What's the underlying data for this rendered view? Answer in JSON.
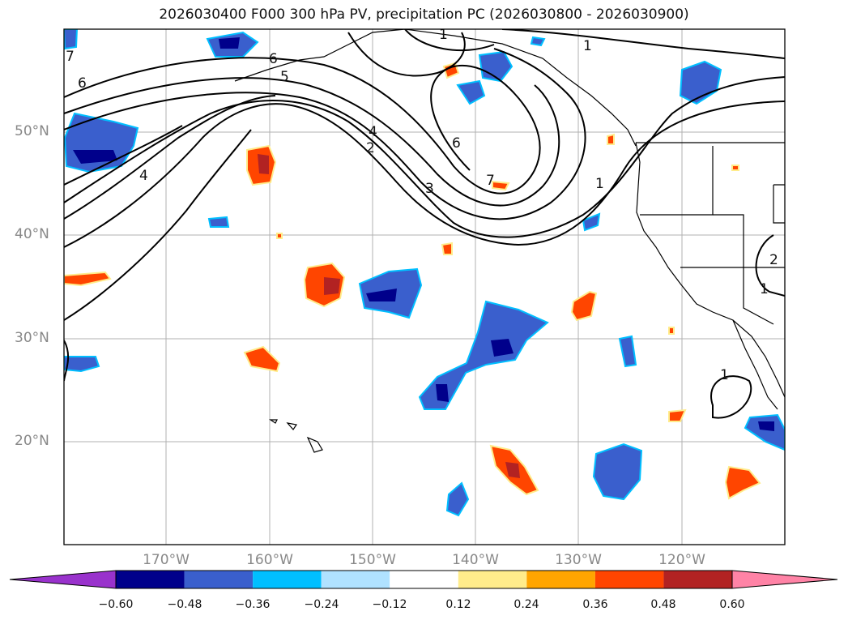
{
  "title": "2026030400 F000 300 hPa PV, precipitation PC (2026030800 - 2026030900)",
  "lat_labels": [
    "50°N",
    "40°N",
    "30°N",
    "20°N"
  ],
  "lon_labels": [
    "170°W",
    "160°W",
    "150°W",
    "140°W",
    "130°W",
    "120°W"
  ],
  "pv_contour_labels": [
    "1",
    "1",
    "1",
    "1",
    "1",
    "2",
    "2",
    "3",
    "4",
    "4",
    "5",
    "6",
    "6",
    "6",
    "7",
    "7"
  ],
  "colorbar": {
    "ticks": [
      "−0.60",
      "−0.48",
      "−0.36",
      "−0.24",
      "−0.12",
      "0.12",
      "0.24",
      "0.36",
      "0.48",
      "0.60"
    ],
    "colors": [
      "#9932cc",
      "#00008b",
      "#3a5fcd",
      "#00bfff",
      "#b0e2ff",
      "#ffffff",
      "#ffec8b",
      "#ffa500",
      "#ff4500",
      "#b22222",
      "#ff83a6"
    ]
  },
  "colors": {
    "neg_strong": "#00008b",
    "neg_mid": "#3a5fcd",
    "neg_light": "#00bfff",
    "pos_mid": "#ffa500",
    "pos_strong": "#ff4500",
    "pos_max": "#b22222",
    "pos_light": "#ffec8b"
  }
}
